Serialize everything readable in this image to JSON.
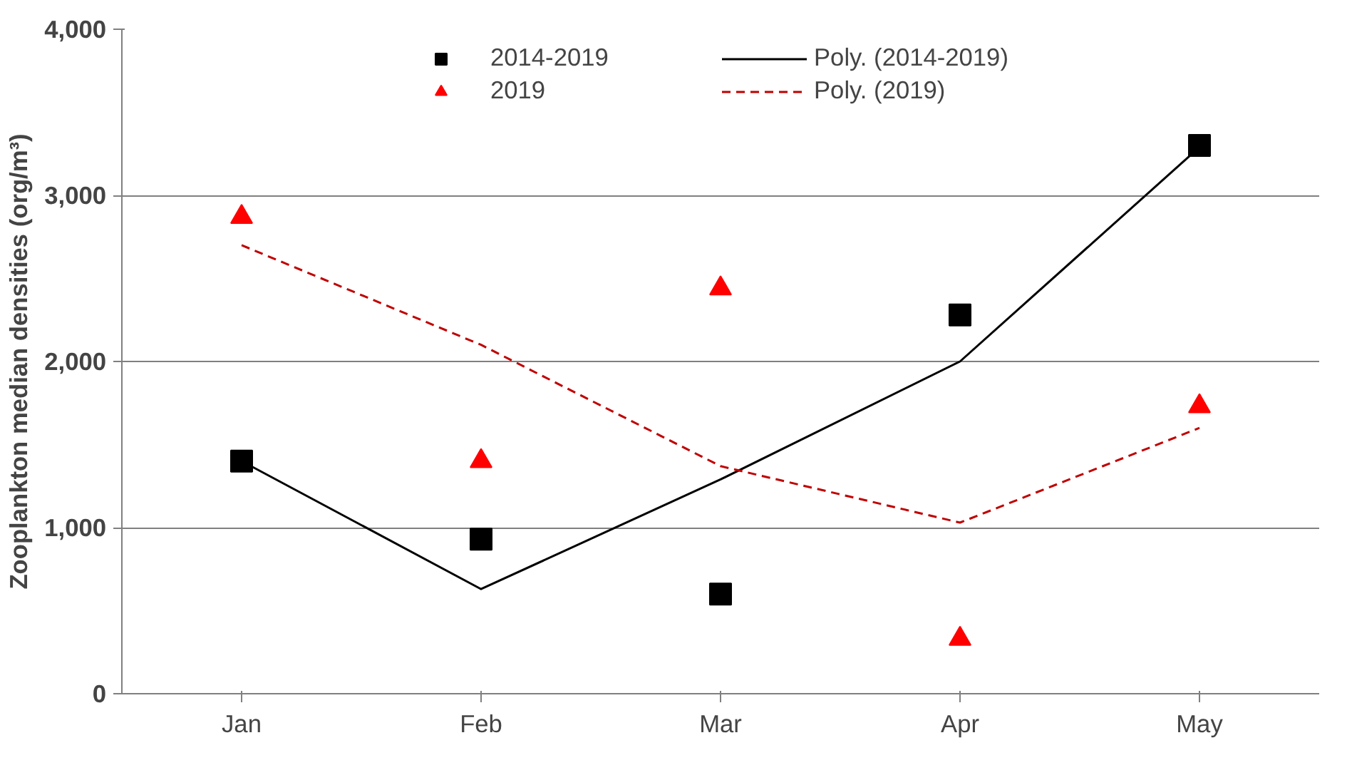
{
  "chart_data": {
    "type": "scatter",
    "ylabel": "Zooplankton median densities (org/m³)",
    "categories": [
      "Jan",
      "Feb",
      "Mar",
      "Apr",
      "May"
    ],
    "ylim": [
      0,
      4000
    ],
    "yticks": [
      {
        "value": 0,
        "label": "0"
      },
      {
        "value": 1000,
        "label": "1,000"
      },
      {
        "value": 2000,
        "label": "2,000"
      },
      {
        "value": 3000,
        "label": "3,000"
      },
      {
        "value": 4000,
        "label": "4,000"
      }
    ],
    "grid": "y",
    "legend": "top",
    "series": [
      {
        "name": "2014-2019",
        "marker": "square",
        "color": "#000000",
        "values": [
          1400,
          930,
          600,
          2280,
          3300
        ]
      },
      {
        "name": "2019",
        "marker": "triangle",
        "color": "#ff0000",
        "values": [
          2870,
          1400,
          2440,
          330,
          1730
        ]
      },
      {
        "name": "Poly. (2014-2019)",
        "type": "line",
        "line_style": "solid",
        "color": "#000000",
        "values": [
          1400,
          630,
          1290,
          2000,
          3290
        ]
      },
      {
        "name": "Poly. (2019)",
        "type": "line",
        "line_style": "dashed",
        "color": "#c00000",
        "values": [
          2700,
          2100,
          1370,
          1030,
          1600
        ]
      }
    ]
  }
}
